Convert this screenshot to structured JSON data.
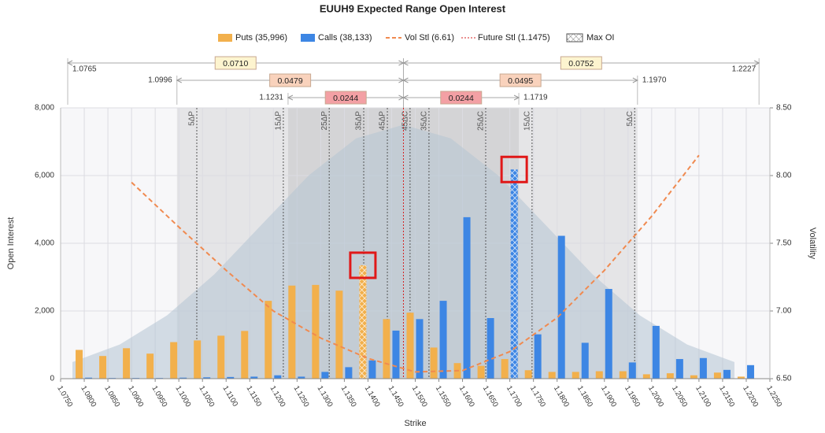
{
  "chart_data": {
    "type": "bar",
    "title": "EUUH9 Expected Range Open Interest",
    "xlabel": "Strike",
    "ylabel": "Open Interest",
    "y2label": "Volatility",
    "xlim": [
      1.075,
      1.225
    ],
    "ylim": [
      0,
      8000
    ],
    "y2lim": [
      6.5,
      8.5
    ],
    "grid": true,
    "xticks": [
      {
        "value": 1.075,
        "label": "1.0750"
      },
      {
        "value": 1.08,
        "label": "1.0800"
      },
      {
        "value": 1.085,
        "label": "1.0850"
      },
      {
        "value": 1.09,
        "label": "1.0900"
      },
      {
        "value": 1.095,
        "label": "1.0950"
      },
      {
        "value": 1.1,
        "label": "1.1000"
      },
      {
        "value": 1.105,
        "label": "1.1050"
      },
      {
        "value": 1.11,
        "label": "1.1100"
      },
      {
        "value": 1.115,
        "label": "1.1150"
      },
      {
        "value": 1.12,
        "label": "1.1200"
      },
      {
        "value": 1.125,
        "label": "1.1250"
      },
      {
        "value": 1.13,
        "label": "1.1300"
      },
      {
        "value": 1.135,
        "label": "1.1350"
      },
      {
        "value": 1.14,
        "label": "1.1400"
      },
      {
        "value": 1.145,
        "label": "1.1450"
      },
      {
        "value": 1.15,
        "label": "1.1500"
      },
      {
        "value": 1.155,
        "label": "1.1550"
      },
      {
        "value": 1.16,
        "label": "1.1600"
      },
      {
        "value": 1.165,
        "label": "1.1650"
      },
      {
        "value": 1.17,
        "label": "1.1700"
      },
      {
        "value": 1.175,
        "label": "1.1750"
      },
      {
        "value": 1.18,
        "label": "1.1800"
      },
      {
        "value": 1.185,
        "label": "1.1850"
      },
      {
        "value": 1.19,
        "label": "1.1900"
      },
      {
        "value": 1.195,
        "label": "1.1950"
      },
      {
        "value": 1.2,
        "label": "1.2000"
      },
      {
        "value": 1.205,
        "label": "1.2050"
      },
      {
        "value": 1.21,
        "label": "1.2100"
      },
      {
        "value": 1.215,
        "label": "1.2150"
      },
      {
        "value": 1.22,
        "label": "1.2200"
      },
      {
        "value": 1.225,
        "label": "1.2250"
      }
    ],
    "yticks": [
      0,
      {
        "value": 2000,
        "label": "2,000"
      },
      {
        "value": 4000,
        "label": "4,000"
      },
      {
        "value": 6000,
        "label": "6,000"
      },
      {
        "value": 8000,
        "label": "8,000"
      }
    ],
    "y2ticks": [
      {
        "value": 6.5,
        "label": "6.50"
      },
      {
        "value": 7,
        "label": "7.00"
      },
      {
        "value": 7.5,
        "label": "7.50"
      },
      {
        "value": 8,
        "label": "8.00"
      },
      {
        "value": 8.5,
        "label": "8.50"
      }
    ],
    "x": [
      1.08,
      1.085,
      1.09,
      1.095,
      1.1,
      1.105,
      1.11,
      1.115,
      1.12,
      1.125,
      1.13,
      1.135,
      1.14,
      1.145,
      1.15,
      1.155,
      1.16,
      1.165,
      1.17,
      1.175,
      1.18,
      1.185,
      1.19,
      1.195,
      1.2,
      1.205,
      1.21,
      1.215,
      1.22
    ],
    "series": [
      {
        "name": "Puts (35,996)",
        "color": "#f2b04c",
        "values": [
          850,
          670,
          900,
          740,
          1080,
          1130,
          1270,
          1410,
          2300,
          2750,
          2770,
          2600,
          3350,
          1760,
          1950,
          920,
          460,
          380,
          580,
          250,
          200,
          200,
          220,
          220,
          130,
          160,
          100,
          180,
          60
        ]
      },
      {
        "name": "Calls (38,133)",
        "color": "#3d86e4",
        "values": [
          30,
          20,
          20,
          20,
          30,
          40,
          50,
          60,
          100,
          60,
          200,
          340,
          540,
          1420,
          1760,
          2300,
          4770,
          1790,
          6180,
          1310,
          4220,
          1060,
          2650,
          480,
          1560,
          580,
          610,
          260,
          400
        ]
      }
    ],
    "vol": {
      "name": "Vol Stl (6.61)",
      "color": "#f08a50",
      "axis": "y2",
      "x": [
        1.09,
        1.1,
        1.11,
        1.12,
        1.13,
        1.14,
        1.15,
        1.16,
        1.17,
        1.18,
        1.19,
        1.2,
        1.21
      ],
      "values": [
        7.95,
        7.62,
        7.3,
        7.0,
        6.8,
        6.65,
        6.55,
        6.56,
        6.7,
        6.95,
        7.3,
        7.7,
        8.15
      ]
    },
    "future_stl": {
      "name": "Future Stl (1.1475)",
      "value": 1.1475,
      "color": "#d42020"
    },
    "max_oi_label": "Max OI",
    "density": {
      "color": "#b4c4d4",
      "x": [
        1.0775,
        1.0875,
        1.0975,
        1.1075,
        1.1175,
        1.1275,
        1.1375,
        1.1475,
        1.1575,
        1.1675,
        1.1775,
        1.1875,
        1.1975,
        1.2075,
        1.2175
      ],
      "values": [
        490,
        1010,
        1870,
        3080,
        4550,
        6010,
        7100,
        7500,
        7100,
        6010,
        4550,
        3080,
        1870,
        1010,
        490
      ]
    },
    "deltas": [
      {
        "label": "5ΔP",
        "x": 1.1038
      },
      {
        "label": "15ΔP",
        "x": 1.1221
      },
      {
        "label": "25ΔP",
        "x": 1.1318
      },
      {
        "label": "35ΔP",
        "x": 1.1391
      },
      {
        "label": "45ΔP",
        "x": 1.1441
      },
      {
        "label": "45ΔC",
        "x": 1.1489
      },
      {
        "label": "35ΔC",
        "x": 1.1529
      },
      {
        "label": "25ΔC",
        "x": 1.1649
      },
      {
        "label": "15ΔC",
        "x": 1.1747
      },
      {
        "label": "5ΔC",
        "x": 1.1964
      }
    ],
    "ranges": [
      {
        "low": 1.0765,
        "high": 1.2227,
        "low_width": {
          "value": 0.071,
          "label": "0.0710"
        },
        "high_width": 0.0752,
        "color": "#fdf4cf"
      },
      {
        "low": 1.0996,
        "high": {
          "value": 1.197,
          "label": "1.1970"
        },
        "low_width": 0.0479,
        "high_width": 0.0495,
        "color": "#f9d2bc"
      },
      {
        "low": 1.1231,
        "high": 1.1719,
        "low_width": 0.0244,
        "high_width": 0.0244,
        "color": "#f3a0a4"
      }
    ]
  }
}
